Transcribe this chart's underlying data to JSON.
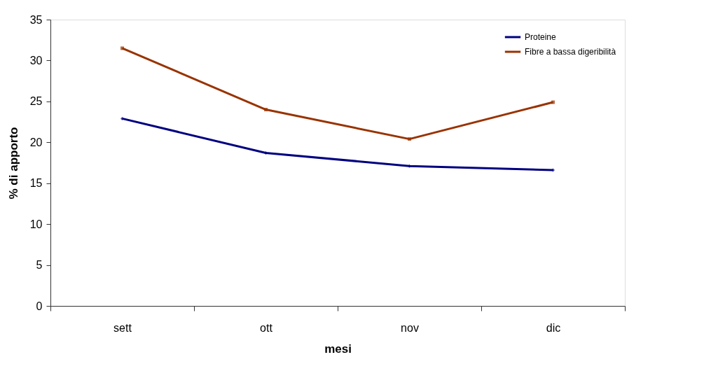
{
  "chart_data": {
    "type": "line",
    "xlabel": "mesi",
    "ylabel": "% di apporto",
    "categories": [
      "sett",
      "ott",
      "nov",
      "dic"
    ],
    "series": [
      {
        "name": "Proteine",
        "color": "#000080",
        "marker": "diamond",
        "values": [
          22.9,
          18.7,
          17.1,
          16.6
        ]
      },
      {
        "name": "Fibre a bassa digeribilità",
        "color": "#993300",
        "marker": "square",
        "values": [
          31.5,
          24.0,
          20.4,
          24.9
        ]
      }
    ],
    "ylim": [
      0,
      35
    ],
    "yticks": [
      0,
      5,
      10,
      15,
      20,
      25,
      30,
      35
    ],
    "grid": false,
    "legend": "top right",
    "line_style": "solid"
  }
}
